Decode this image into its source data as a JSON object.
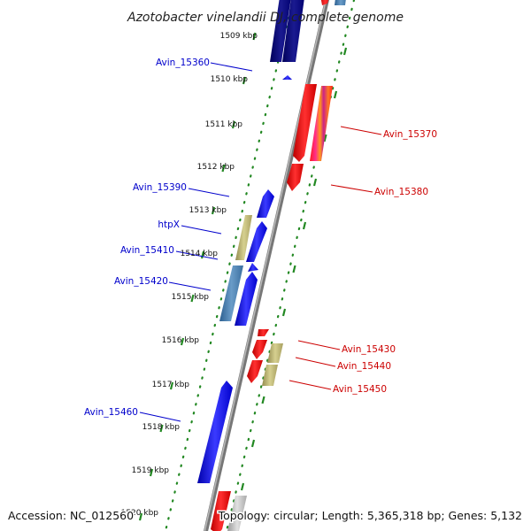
{
  "title": "Azotobacter vinelandii DJ, complete genome",
  "footer": {
    "accession": "Accession: NC_012560",
    "topology": "Topology: circular; Length: 5,365,318 bp; Genes: 5,132"
  },
  "ruler_labels": [
    "1509 kbp",
    "1510 kbp",
    "1511 kbp",
    "1512 kbp",
    "1513 kbp",
    "1514 kbp",
    "1515 kbp",
    "1516 kbp",
    "1517 kbp",
    "1518 kbp",
    "1519 kbp",
    "1520 kbp"
  ],
  "gene_labels": {
    "left": [
      "Avin_15360",
      "Avin_15390",
      "htpX",
      "Avin_15410",
      "Avin_15420",
      "Avin_15460"
    ],
    "right": [
      "Avin_15370",
      "Avin_15380",
      "Avin_15430",
      "Avin_15440",
      "Avin_15450"
    ]
  },
  "colors": {
    "reverse_strand": "#0000ee",
    "forward_strand": "#ee0000",
    "steel": "#4a7fb0",
    "khaki": "#b8b070",
    "backbone": "#888888",
    "tick": "#228822"
  }
}
